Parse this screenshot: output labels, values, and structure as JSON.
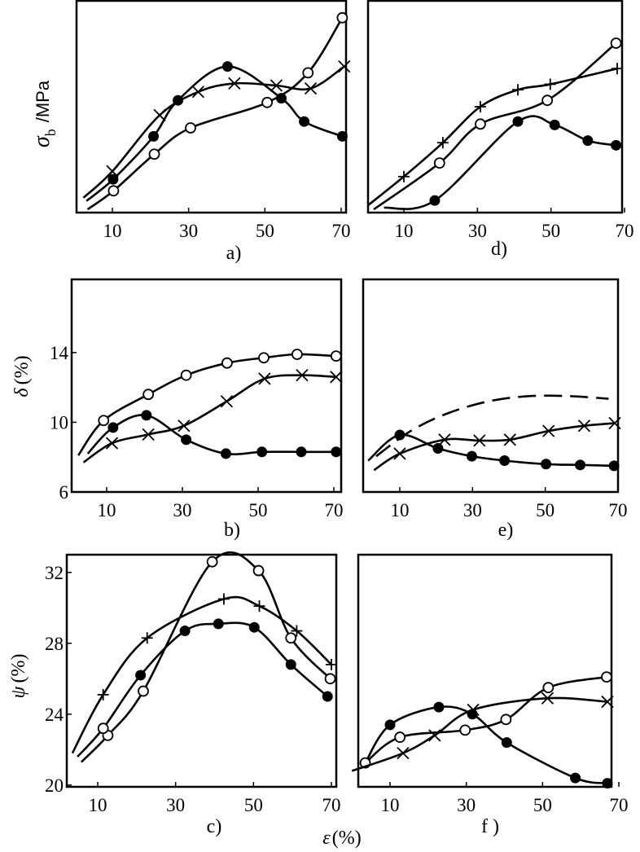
{
  "chart_data": [
    {
      "id": "a",
      "type": "line",
      "panel_label": "a)",
      "ylabel": {
        "symbol": "σ",
        "sub": "b",
        "unit": "/MPa"
      },
      "xlim": [
        0,
        72
      ],
      "ylim": [
        0,
        100
      ],
      "xticks": [
        10,
        30,
        50,
        70
      ],
      "yticks": [],
      "series": [
        {
          "name": "open-circle",
          "marker": "o",
          "curve_start": [
            3.5,
            1.5
          ],
          "points": [
            [
              10.3,
              10.3
            ],
            [
              21,
              27.6
            ],
            [
              30.5,
              40
            ],
            [
              50.6,
              52
            ],
            [
              61.3,
              66
            ],
            [
              70.3,
              92
            ]
          ]
        },
        {
          "name": "filled-circle",
          "marker": "filled",
          "curve_start": [
            3.2,
            5.5
          ],
          "points": [
            [
              10.2,
              15.7
            ],
            [
              20.8,
              36
            ],
            [
              27.2,
              53
            ],
            [
              40.2,
              69
            ],
            [
              54.3,
              54
            ],
            [
              60.3,
              43
            ],
            [
              70.3,
              36
            ]
          ]
        },
        {
          "name": "cross",
          "marker": "x",
          "curve_start": [
            2.4,
            7
          ],
          "points": [
            [
              10,
              19.5
            ],
            [
              22.4,
              46
            ],
            [
              32.5,
              57
            ],
            [
              42,
              61
            ],
            [
              53,
              60
            ],
            [
              62,
              58.6
            ],
            [
              70.8,
              69
            ]
          ]
        }
      ]
    },
    {
      "id": "d",
      "type": "line",
      "panel_label": "d)",
      "xlim": [
        0,
        72
      ],
      "ylim": [
        0,
        100
      ],
      "xticks": [
        10,
        30,
        50,
        70
      ],
      "yticks": [],
      "series": [
        {
          "name": "open-circle",
          "marker": "o",
          "curve_start": [
            1.8,
            1.5
          ],
          "points": [
            [
              19.7,
              23.4
            ],
            [
              30.8,
              41.8
            ],
            [
              49,
              53
            ],
            [
              67.7,
              80
            ]
          ]
        },
        {
          "name": "cross",
          "marker": "+",
          "curve_start": [
            0.3,
            3.5
          ],
          "points": [
            [
              10,
              17
            ],
            [
              20.6,
              33
            ],
            [
              30.8,
              50
            ],
            [
              41,
              58
            ],
            [
              49.8,
              60.6
            ],
            [
              68,
              68
            ]
          ]
        },
        {
          "name": "filled-circle",
          "marker": "filled",
          "curve_start": [
            4.6,
            2.3
          ],
          "points": [
            [
              18.4,
              5.7
            ],
            [
              41,
              43
            ],
            [
              51,
              41.4
            ],
            [
              60,
              34
            ],
            [
              67.7,
              31.8
            ]
          ]
        }
      ]
    },
    {
      "id": "b",
      "type": "line",
      "panel_label": "b)",
      "ylabel": {
        "symbol": "δ",
        "unit": "(%)"
      },
      "xlim": [
        0,
        72
      ],
      "ylim": [
        6,
        18.2
      ],
      "xticks": [
        10,
        30,
        50,
        70
      ],
      "yticks": [
        6,
        10,
        14
      ],
      "series": [
        {
          "name": "open-circle",
          "marker": "o",
          "curve_start": [
            2.5,
            8.1
          ],
          "points": [
            [
              9.2,
              10.1
            ],
            [
              21,
              11.6
            ],
            [
              31,
              12.7
            ],
            [
              41.8,
              13.4
            ],
            [
              51.5,
              13.7
            ],
            [
              60.3,
              13.9
            ],
            [
              70.6,
              13.8
            ]
          ]
        },
        {
          "name": "cross",
          "marker": "x",
          "curve_start": [
            3.9,
            7.7
          ],
          "points": [
            [
              11.4,
              8.8
            ],
            [
              21,
              9.3
            ],
            [
              30.4,
              9.8
            ],
            [
              41.7,
              11.2
            ],
            [
              51.7,
              12.5
            ],
            [
              61.6,
              12.7
            ],
            [
              70.6,
              12.6
            ]
          ]
        },
        {
          "name": "filled-circle",
          "marker": "filled",
          "curve_start": [
            5,
            8.2
          ],
          "points": [
            [
              11.7,
              9.7
            ],
            [
              20.5,
              10.4
            ],
            [
              31,
              9.0
            ],
            [
              41.5,
              8.2
            ],
            [
              51,
              8.3
            ],
            [
              61.4,
              8.3
            ],
            [
              70.6,
              8.3
            ]
          ]
        }
      ]
    },
    {
      "id": "e",
      "type": "line",
      "panel_label": "e)",
      "xlim": [
        0,
        72
      ],
      "ylim": [
        6,
        18.2
      ],
      "xticks": [
        10,
        30,
        50,
        70
      ],
      "yticks": [],
      "series": [
        {
          "name": "dashed",
          "marker": "none",
          "dashed": true,
          "curve_start": [
            3.5,
            8.05
          ],
          "points": [
            [
              13,
              9.5
            ],
            [
              23,
              10.5
            ],
            [
              34.3,
              11.2
            ],
            [
              45.5,
              11.5
            ],
            [
              56.7,
              11.5
            ],
            [
              67.4,
              11.35
            ]
          ]
        },
        {
          "name": "filled-circle",
          "marker": "filled",
          "curve_start": [
            1.3,
            7.8
          ],
          "points": [
            [
              10,
              9.27
            ],
            [
              20.5,
              8.5
            ],
            [
              29.8,
              8.05
            ],
            [
              38.8,
              7.8
            ],
            [
              50.2,
              7.6
            ],
            [
              59.6,
              7.55
            ],
            [
              68.9,
              7.5
            ]
          ]
        },
        {
          "name": "cross",
          "marker": "x",
          "curve_start": [
            2.9,
            7.25
          ],
          "points": [
            [
              10,
              8.2
            ],
            [
              22.3,
              9.0
            ],
            [
              31.9,
              8.95
            ],
            [
              40.3,
              9.0
            ],
            [
              50.9,
              9.5
            ],
            [
              60.7,
              9.8
            ],
            [
              69.1,
              9.95
            ]
          ]
        }
      ]
    },
    {
      "id": "c",
      "type": "line",
      "panel_label": "c)",
      "ylabel": {
        "symbol": "ψ",
        "unit": "(%)"
      },
      "xlim": [
        0,
        72
      ],
      "ylim": [
        19.9,
        33
      ],
      "xticks": [
        10,
        30,
        50,
        70
      ],
      "yticks": [
        20,
        24,
        28,
        32
      ],
      "series": [
        {
          "name": "cross",
          "marker": "+",
          "curve_start": [
            3.5,
            21.8
          ],
          "points": [
            [
              11.4,
              25.1
            ],
            [
              22.7,
              28.3
            ],
            [
              42.4,
              30.5
            ],
            [
              51.5,
              30.1
            ],
            [
              61.1,
              28.7
            ],
            [
              70,
              26.8
            ]
          ]
        },
        {
          "name": "open-circle",
          "marker": "o",
          "curve_start": [
            5.8,
            21.3
          ],
          "points": [
            [
              12.6,
              22.8
            ],
            [
              21.7,
              25.3
            ],
            [
              39.4,
              32.6
            ],
            [
              51.3,
              32.1
            ],
            [
              59.6,
              28.3
            ],
            [
              69.7,
              26.0
            ]
          ]
        },
        {
          "name": "filled-circle",
          "marker": "filled",
          "curve_start": [
            4.8,
            21.6
          ],
          "points": [
            [
              11.4,
              23.2,
              "o"
            ],
            [
              21,
              26.2
            ],
            [
              32.4,
              28.7
            ],
            [
              41,
              29.1
            ],
            [
              50.2,
              28.9
            ],
            [
              59.6,
              26.8
            ],
            [
              69,
              25.0
            ]
          ]
        }
      ]
    },
    {
      "id": "f",
      "type": "line",
      "panel_label": "f )",
      "xlim": [
        0,
        72
      ],
      "ylim": [
        19.9,
        33
      ],
      "xticks": [
        10,
        30,
        50,
        70
      ],
      "yticks": [],
      "series": [
        {
          "name": "filled-circle",
          "marker": "filled",
          "curve_start": [
            3.5,
            21.25
          ],
          "points": [
            [
              10,
              23.4
            ],
            [
              22.8,
              24.4
            ],
            [
              31.6,
              24.0
            ],
            [
              40.6,
              22.4
            ],
            [
              58.6,
              20.4
            ],
            [
              67,
              20.1
            ]
          ]
        },
        {
          "name": "open-circle",
          "marker": "o",
          "curve_start": [
            3.5,
            21.25
          ],
          "points": [
            [
              3.5,
              21.25
            ],
            [
              12.6,
              22.7
            ],
            [
              29.7,
              23.1
            ],
            [
              40.4,
              23.7
            ],
            [
              51.5,
              25.5
            ],
            [
              66.8,
              26.1
            ]
          ]
        },
        {
          "name": "cross",
          "marker": "x",
          "curve_start": [
            0,
            20.8
          ],
          "points": [
            [
              13.4,
              21.8
            ],
            [
              21.7,
              22.8
            ],
            [
              31.8,
              24.25
            ],
            [
              51.3,
              24.9
            ],
            [
              67,
              24.7
            ]
          ]
        }
      ]
    }
  ],
  "xlabel": {
    "symbol": "ε",
    "unit": "(%)"
  }
}
